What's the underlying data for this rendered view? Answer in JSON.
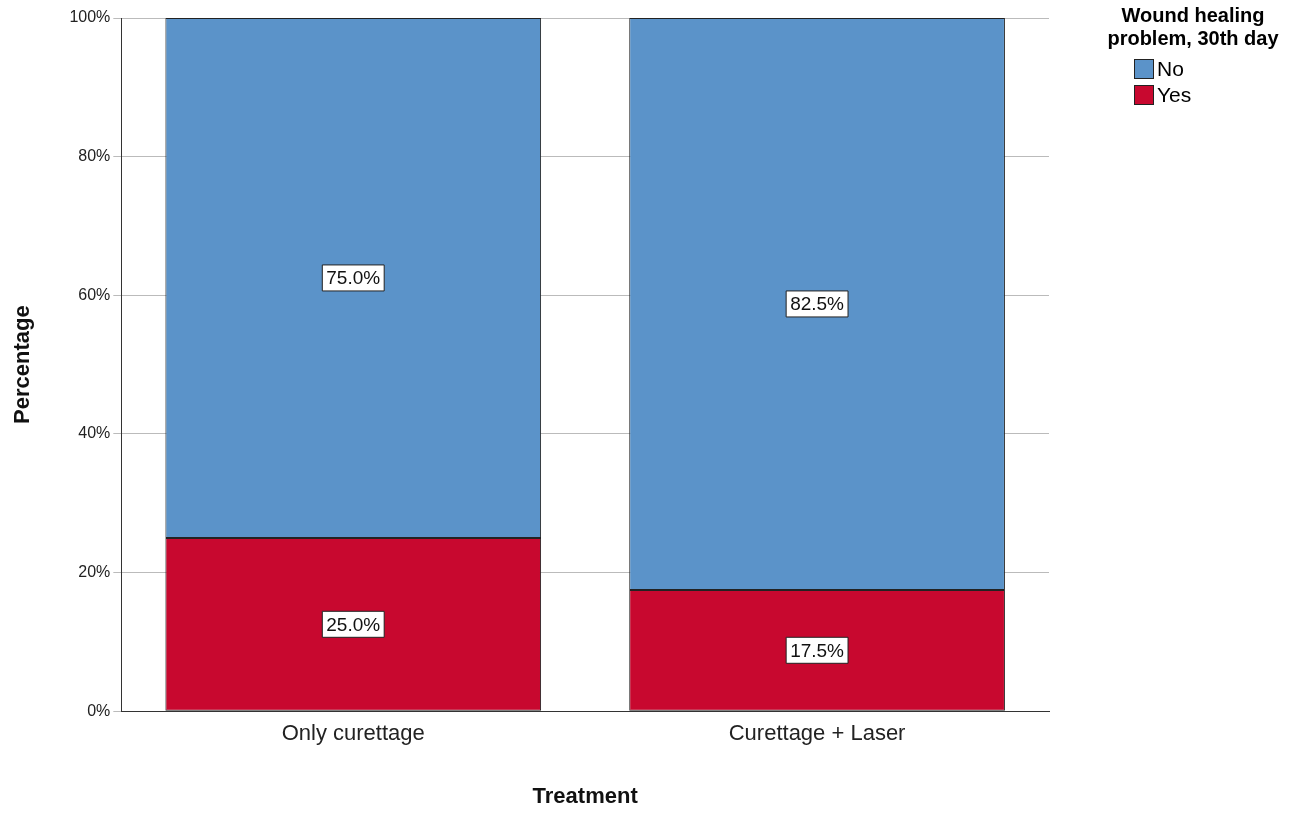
{
  "chart_data": {
    "type": "bar",
    "stacked": true,
    "xlabel": "Treatment",
    "ylabel": "Percentage",
    "legend_title": "Wound healing problem, 30th day",
    "legend": "top right",
    "grid": "y",
    "categories": [
      "Only curettage",
      "Curettage + Laser"
    ],
    "ylim": [
      0,
      100
    ],
    "yticks": [
      {
        "value": 0,
        "label": "0%"
      },
      {
        "value": 20,
        "label": "20%"
      },
      {
        "value": 40,
        "label": "40%"
      },
      {
        "value": 60,
        "label": "60%"
      },
      {
        "value": 80,
        "label": "80%"
      },
      {
        "value": 100,
        "label": "100%"
      }
    ],
    "series": [
      {
        "name": "Yes",
        "color": "#c8082f",
        "values": [
          25,
          17.5
        ],
        "value_labels": [
          "25.0%",
          "17.5%"
        ]
      },
      {
        "name": "No",
        "color": "#5b93c9",
        "values": [
          75,
          82.5
        ],
        "value_labels": [
          "75.0%",
          "82.5%"
        ]
      }
    ]
  }
}
